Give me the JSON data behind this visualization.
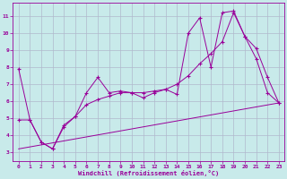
{
  "xlabel": "Windchill (Refroidissement éolien,°C)",
  "bg_color": "#c8eaea",
  "line_color": "#990099",
  "grid_color": "#b0b8cc",
  "xlim": [
    -0.5,
    23.5
  ],
  "ylim": [
    2.5,
    11.8
  ],
  "xticks": [
    0,
    1,
    2,
    3,
    4,
    5,
    6,
    7,
    8,
    9,
    10,
    11,
    12,
    13,
    14,
    15,
    16,
    17,
    18,
    19,
    20,
    21,
    22,
    23
  ],
  "yticks": [
    3,
    4,
    5,
    6,
    7,
    8,
    9,
    10,
    11
  ],
  "series1_x": [
    0,
    1,
    2,
    3,
    4,
    5,
    6,
    7,
    8,
    9,
    10,
    11,
    12,
    13,
    14,
    15,
    16,
    17,
    18,
    19,
    20,
    21,
    22,
    23
  ],
  "series1_y": [
    7.9,
    4.9,
    3.6,
    3.2,
    4.5,
    5.1,
    6.5,
    7.4,
    6.5,
    6.6,
    6.5,
    6.2,
    6.5,
    6.7,
    6.4,
    10.0,
    10.9,
    8.0,
    11.2,
    11.3,
    9.8,
    9.1,
    7.4,
    5.9
  ],
  "series2_x": [
    0,
    1,
    2,
    3,
    4,
    5,
    6,
    7,
    8,
    9,
    10,
    11,
    12,
    13,
    14,
    15,
    16,
    17,
    18,
    19,
    20,
    21,
    22,
    23
  ],
  "series2_y": [
    4.9,
    4.9,
    3.6,
    3.2,
    4.6,
    5.1,
    5.8,
    6.1,
    6.3,
    6.5,
    6.5,
    6.5,
    6.6,
    6.7,
    7.0,
    7.5,
    8.2,
    8.8,
    9.5,
    11.2,
    9.8,
    8.5,
    6.5,
    5.9
  ],
  "series3_x": [
    0,
    23
  ],
  "series3_y": [
    3.2,
    5.9
  ]
}
